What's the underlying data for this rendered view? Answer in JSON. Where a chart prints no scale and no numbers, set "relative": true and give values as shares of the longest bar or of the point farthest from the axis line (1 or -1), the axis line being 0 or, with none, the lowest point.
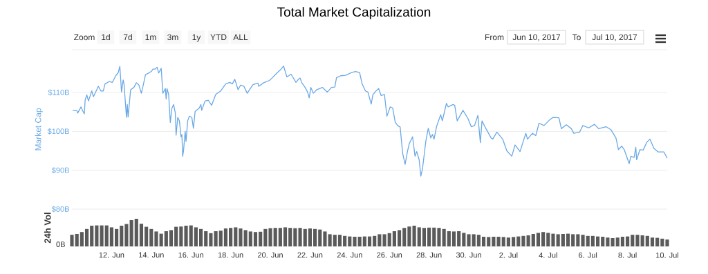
{
  "chart_data": [
    {
      "type": "line",
      "title": "Total Market Capitalization",
      "ylabel": "Market Cap",
      "xlim": [
        "2017-06-10",
        "2017-07-10"
      ],
      "ylim": [
        80,
        121
      ],
      "yticks": [
        {
          "value": 80,
          "label": "$80B"
        },
        {
          "value": 90,
          "label": "$90B"
        },
        {
          "value": 100,
          "label": "$100B"
        },
        {
          "value": 110,
          "label": "$110B"
        }
      ],
      "grid": "y",
      "tick_labels": "y",
      "annotations": [
        "Zoom",
        "1d",
        "7d",
        "1m",
        "3m",
        "1y",
        "YTD",
        "ALL",
        "From",
        "Jun 10, 2017",
        "To",
        "Jul 10, 2017"
      ],
      "series": [
        {
          "color": "#6aa9e6",
          "x": [
            "2017-06-10T01:00",
            "2017-06-10T06:00",
            "2017-06-10T07:00",
            "2017-06-10T11:00",
            "2017-06-10T13:00",
            "2017-06-10T15:00",
            "2017-06-10T16:00",
            "2017-06-10T18:00",
            "2017-06-10T20:00",
            "2017-06-11T00:00",
            "2017-06-11T02:00",
            "2017-06-11T08:00",
            "2017-06-11T11:00",
            "2017-06-11T14:00",
            "2017-06-11T16:00",
            "2017-06-11T21:00",
            "2017-06-12T01:00",
            "2017-06-12T05:00",
            "2017-06-12T08:00",
            "2017-06-12T10:00",
            "2017-06-12T12:00",
            "2017-06-12T14:00",
            "2017-06-12T15:00",
            "2017-06-12T18:00",
            "2017-06-12T19:00",
            "2017-06-12T20:00",
            "2017-06-12T23:00",
            "2017-06-13T03:00",
            "2017-06-13T06:00",
            "2017-06-13T09:00",
            "2017-06-13T12:00",
            "2017-06-13T14:00",
            "2017-06-13T17:00",
            "2017-06-13T20:00",
            "2017-06-14T00:00",
            "2017-06-14T02:00",
            "2017-06-14T05:00",
            "2017-06-14T07:00",
            "2017-06-14T09:00",
            "2017-06-14T12:00",
            "2017-06-14T14:00",
            "2017-06-14T17:00",
            "2017-06-14T18:00",
            "2017-06-14T19:00",
            "2017-06-14T21:00",
            "2017-06-14T23:00",
            "2017-06-15T01:00",
            "2017-06-15T03:00",
            "2017-06-15T05:00",
            "2017-06-15T06:00",
            "2017-06-15T08:00",
            "2017-06-15T10:00",
            "2017-06-15T12:00",
            "2017-06-15T13:00",
            "2017-06-15T14:00",
            "2017-06-15T15:00",
            "2017-06-15T17:00",
            "2017-06-15T18:00",
            "2017-06-15T20:00",
            "2017-06-15T22:00",
            "2017-06-16T01:00",
            "2017-06-16T03:00",
            "2017-06-16T05:00",
            "2017-06-16T10:00",
            "2017-06-16T12:00",
            "2017-06-16T13:00",
            "2017-06-16T17:00",
            "2017-06-16T21:00",
            "2017-06-17T01:00",
            "2017-06-17T06:00",
            "2017-06-17T12:00",
            "2017-06-17T18:00",
            "2017-06-17T23:00",
            "2017-06-18T02:00",
            "2017-06-18T05:00",
            "2017-06-18T09:00",
            "2017-06-18T12:00",
            "2017-06-18T16:00",
            "2017-06-18T20:00",
            "2017-06-19T03:00",
            "2017-06-19T09:00",
            "2017-06-19T10:00",
            "2017-06-19T16:00",
            "2017-06-19T23:00",
            "2017-06-20T02:00",
            "2017-06-20T08:00",
            "2017-06-20T13:00",
            "2017-06-20T16:00",
            "2017-06-20T20:00",
            "2017-06-21T01:00",
            "2017-06-21T07:00",
            "2017-06-21T10:00",
            "2017-06-21T12:00",
            "2017-06-21T14:00",
            "2017-06-21T18:00",
            "2017-06-21T21:00",
            "2017-06-21T23:00",
            "2017-06-22T01:00",
            "2017-06-22T04:00",
            "2017-06-22T08:00",
            "2017-06-22T15:00",
            "2017-06-22T21:00",
            "2017-06-23T02:00",
            "2017-06-23T06:00",
            "2017-06-23T08:00",
            "2017-06-23T13:00",
            "2017-06-23T19:00",
            "2017-06-24T02:00",
            "2017-06-24T07:00",
            "2017-06-24T12:00",
            "2017-06-24T15:00",
            "2017-06-24T19:00",
            "2017-06-24T22:00",
            "2017-06-25T02:00",
            "2017-06-25T04:00",
            "2017-06-25T07:00",
            "2017-06-25T11:00",
            "2017-06-25T14:00",
            "2017-06-25T18:00",
            "2017-06-25T21:00",
            "2017-06-26T01:00",
            "2017-06-26T04:00",
            "2017-06-26T07:00",
            "2017-06-26T10:00",
            "2017-06-26T13:00",
            "2017-06-26T16:00",
            "2017-06-26T19:00",
            "2017-06-26T22:00",
            "2017-06-27T00:00",
            "2017-06-27T04:00",
            "2017-06-27T07:00",
            "2017-06-27T09:00",
            "2017-06-27T12:00",
            "2017-06-27T14:00",
            "2017-06-27T16:00",
            "2017-06-27T20:00",
            "2017-06-27T23:00",
            "2017-06-28T02:00",
            "2017-06-28T04:00",
            "2017-06-28T06:00",
            "2017-06-28T09:00",
            "2017-06-28T14:00",
            "2017-06-28T16:00",
            "2017-06-28T21:00",
            "2017-06-28T23:00",
            "2017-06-29T05:00",
            "2017-06-29T07:00",
            "2017-06-29T10:00",
            "2017-06-29T17:00",
            "2017-06-29T23:00",
            "2017-06-30T03:00",
            "2017-06-30T07:00",
            "2017-06-30T11:00",
            "2017-06-30T14:00",
            "2017-06-30T16:00",
            "2017-06-30T21:00",
            "2017-07-01T03:00",
            "2017-07-01T05:00",
            "2017-07-01T10:00",
            "2017-07-01T17:00",
            "2017-07-01T22:00",
            "2017-07-02T04:00",
            "2017-07-02T08:00",
            "2017-07-02T14:00",
            "2017-07-02T21:00",
            "2017-07-02T23:00",
            "2017-07-03T05:00",
            "2017-07-03T09:00",
            "2017-07-03T13:00",
            "2017-07-03T19:00",
            "2017-07-04T02:00",
            "2017-07-04T06:00",
            "2017-07-04T13:00",
            "2017-07-04T16:00",
            "2017-07-04T22:00",
            "2017-07-05T04:00",
            "2017-07-05T07:00",
            "2017-07-05T14:00",
            "2017-07-05T18:00",
            "2017-07-06T01:00",
            "2017-07-06T08:00",
            "2017-07-06T13:00",
            "2017-07-06T22:00",
            "2017-07-07T04:00",
            "2017-07-07T10:00",
            "2017-07-07T13:00",
            "2017-07-07T17:00",
            "2017-07-07T20:00",
            "2017-07-08T02:00",
            "2017-07-08T04:00",
            "2017-07-08T08:00",
            "2017-07-08T10:00",
            "2017-07-08T11:00",
            "2017-07-08T15:00",
            "2017-07-08T19:00",
            "2017-07-08T23:00",
            "2017-07-09T03:00",
            "2017-07-09T08:00",
            "2017-07-09T13:00",
            "2017-07-09T20:00",
            "2017-07-10T00:00"
          ],
          "values": [
            105.4,
            105.3,
            104.7,
            106.3,
            105.3,
            104.5,
            108,
            109.4,
            107.8,
            110.4,
            108.9,
            111.6,
            110.4,
            110.4,
            112.2,
            112.8,
            112.6,
            114.3,
            115.1,
            116.7,
            110.1,
            113.2,
            112.2,
            103.6,
            106.9,
            103.7,
            110.7,
            111.3,
            112.5,
            111.9,
            109.8,
            111.6,
            114.6,
            114.9,
            115.4,
            116,
            116,
            116.5,
            115,
            116.2,
            109.8,
            111,
            108.3,
            111,
            109.5,
            102.3,
            106,
            106.9,
            104.8,
            99,
            103.6,
            102.7,
            98.6,
            99.2,
            93.6,
            95,
            100,
            97.4,
            102.7,
            103.9,
            103.6,
            100.8,
            105.1,
            106,
            106.9,
            105.4,
            107.8,
            108,
            106.7,
            109.5,
            110.4,
            112.2,
            112.6,
            112.2,
            113.4,
            110.7,
            111.9,
            111.6,
            109.8,
            112,
            112.4,
            111.6,
            112.5,
            113.1,
            113.7,
            115,
            116,
            116.8,
            114,
            114.7,
            112.6,
            113.4,
            113.7,
            112.5,
            111.3,
            110.1,
            108.6,
            111.3,
            109.8,
            110.7,
            111.3,
            110.1,
            111.3,
            111.4,
            113.8,
            114.3,
            114.4,
            115.1,
            115.4,
            115.1,
            112.2,
            110.4,
            110.1,
            107,
            109.4,
            110.2,
            111,
            109.2,
            109.5,
            103.9,
            106.3,
            106,
            102.4,
            101.5,
            101.1,
            94.4,
            91.5,
            95,
            96.8,
            98.6,
            93.6,
            94.8,
            92.7,
            88.5,
            90.3,
            97.4,
            100.8,
            98.3,
            99.2,
            98,
            101.2,
            104.3,
            102.7,
            107.2,
            106.3,
            106.9,
            106.7,
            102.7,
            105.4,
            103.3,
            101.2,
            101.5,
            104.1,
            97.1,
            102.7,
            100.6,
            98.3,
            98,
            99.8,
            98,
            95,
            93.6,
            96.5,
            94.8,
            99.5,
            98,
            99.5,
            98.9,
            102.1,
            101.5,
            103,
            103.6,
            103.5,
            100.7,
            101.7,
            100.7,
            99.5,
            99.8,
            101.5,
            100.9,
            101.8,
            100.7,
            101.2,
            100.4,
            98.3,
            95.3,
            96.2,
            95.3,
            91.7,
            93.6,
            93.3,
            95.9,
            92.7,
            95.3,
            95.2,
            97.1,
            98,
            95.6,
            94.7,
            94.7,
            93.1
          ]
        }
      ]
    },
    {
      "type": "bar",
      "ylabel": "24h Vol",
      "relative": true,
      "tick_labels": "x",
      "xlim": [
        "2017-06-10",
        "2017-07-10"
      ],
      "xticks": [
        {
          "value": "2017-06-12",
          "label": "12. Jun"
        },
        {
          "value": "2017-06-14",
          "label": "14. Jun"
        },
        {
          "value": "2017-06-16",
          "label": "16. Jun"
        },
        {
          "value": "2017-06-18",
          "label": "18. Jun"
        },
        {
          "value": "2017-06-20",
          "label": "20. Jun"
        },
        {
          "value": "2017-06-22",
          "label": "22. Jun"
        },
        {
          "value": "2017-06-24",
          "label": "24. Jun"
        },
        {
          "value": "2017-06-26",
          "label": "26. Jun"
        },
        {
          "value": "2017-06-28",
          "label": "28. Jun"
        },
        {
          "value": "2017-06-30",
          "label": "30. Jun"
        },
        {
          "value": "2017-07-02",
          "label": "2. Jul"
        },
        {
          "value": "2017-07-04",
          "label": "4. Jul"
        },
        {
          "value": "2017-07-06",
          "label": "6. Jul"
        },
        {
          "value": "2017-07-08",
          "label": "8. Jul"
        },
        {
          "value": "2017-07-10",
          "label": "10. Jul"
        }
      ],
      "annotations": [
        "0B"
      ],
      "series": [
        {
          "color": "#5a5a5a",
          "x": [
            "2017-06-10T00:00",
            "2017-06-10T06:00",
            "2017-06-10T12:00",
            "2017-06-10T18:00",
            "2017-06-11T00:00",
            "2017-06-11T06:00",
            "2017-06-11T12:00",
            "2017-06-11T18:00",
            "2017-06-12T00:00",
            "2017-06-12T06:00",
            "2017-06-12T12:00",
            "2017-06-12T18:00",
            "2017-06-13T00:00",
            "2017-06-13T06:00",
            "2017-06-13T12:00",
            "2017-06-13T18:00",
            "2017-06-14T00:00",
            "2017-06-14T06:00",
            "2017-06-14T12:00",
            "2017-06-14T18:00",
            "2017-06-15T00:00",
            "2017-06-15T06:00",
            "2017-06-15T12:00",
            "2017-06-15T18:00",
            "2017-06-16T00:00",
            "2017-06-16T06:00",
            "2017-06-16T12:00",
            "2017-06-16T18:00",
            "2017-06-17T00:00",
            "2017-06-17T06:00",
            "2017-06-17T12:00",
            "2017-06-17T18:00",
            "2017-06-18T00:00",
            "2017-06-18T06:00",
            "2017-06-18T12:00",
            "2017-06-18T18:00",
            "2017-06-19T00:00",
            "2017-06-19T06:00",
            "2017-06-19T12:00",
            "2017-06-19T18:00",
            "2017-06-20T00:00",
            "2017-06-20T06:00",
            "2017-06-20T12:00",
            "2017-06-20T18:00",
            "2017-06-21T00:00",
            "2017-06-21T06:00",
            "2017-06-21T12:00",
            "2017-06-21T18:00",
            "2017-06-22T00:00",
            "2017-06-22T06:00",
            "2017-06-22T12:00",
            "2017-06-22T18:00",
            "2017-06-23T00:00",
            "2017-06-23T06:00",
            "2017-06-23T12:00",
            "2017-06-23T18:00",
            "2017-06-24T00:00",
            "2017-06-24T06:00",
            "2017-06-24T12:00",
            "2017-06-24T18:00",
            "2017-06-25T00:00",
            "2017-06-25T06:00",
            "2017-06-25T12:00",
            "2017-06-25T18:00",
            "2017-06-26T00:00",
            "2017-06-26T06:00",
            "2017-06-26T12:00",
            "2017-06-26T18:00",
            "2017-06-27T00:00",
            "2017-06-27T06:00",
            "2017-06-27T12:00",
            "2017-06-27T18:00",
            "2017-06-28T00:00",
            "2017-06-28T06:00",
            "2017-06-28T12:00",
            "2017-06-28T18:00",
            "2017-06-29T00:00",
            "2017-06-29T06:00",
            "2017-06-29T12:00",
            "2017-06-29T18:00",
            "2017-06-30T00:00",
            "2017-06-30T06:00",
            "2017-06-30T12:00",
            "2017-06-30T18:00",
            "2017-07-01T00:00",
            "2017-07-01T06:00",
            "2017-07-01T12:00",
            "2017-07-01T18:00",
            "2017-07-02T00:00",
            "2017-07-02T06:00",
            "2017-07-02T12:00",
            "2017-07-02T18:00",
            "2017-07-03T00:00",
            "2017-07-03T06:00",
            "2017-07-03T12:00",
            "2017-07-03T18:00",
            "2017-07-04T00:00",
            "2017-07-04T06:00",
            "2017-07-04T12:00",
            "2017-07-04T18:00",
            "2017-07-05T00:00",
            "2017-07-05T06:00",
            "2017-07-05T12:00",
            "2017-07-05T18:00",
            "2017-07-06T00:00",
            "2017-07-06T06:00",
            "2017-07-06T12:00",
            "2017-07-06T18:00",
            "2017-07-07T00:00",
            "2017-07-07T06:00",
            "2017-07-07T12:00",
            "2017-07-07T18:00",
            "2017-07-08T00:00",
            "2017-07-08T06:00",
            "2017-07-08T12:00",
            "2017-07-08T18:00",
            "2017-07-09T00:00",
            "2017-07-09T06:00",
            "2017-07-09T12:00",
            "2017-07-09T18:00",
            "2017-07-10T00:00"
          ],
          "values": [
            0.42,
            0.45,
            0.52,
            0.63,
            0.75,
            0.76,
            0.76,
            0.76,
            0.69,
            0.63,
            0.75,
            0.81,
            0.95,
            1.0,
            0.82,
            0.71,
            0.63,
            0.54,
            0.46,
            0.55,
            0.59,
            0.71,
            0.72,
            0.75,
            0.76,
            0.69,
            0.63,
            0.55,
            0.48,
            0.55,
            0.57,
            0.65,
            0.67,
            0.69,
            0.65,
            0.59,
            0.54,
            0.52,
            0.53,
            0.63,
            0.66,
            0.67,
            0.67,
            0.69,
            0.67,
            0.66,
            0.67,
            0.63,
            0.65,
            0.63,
            0.61,
            0.54,
            0.44,
            0.42,
            0.42,
            0.38,
            0.36,
            0.35,
            0.35,
            0.36,
            0.36,
            0.38,
            0.44,
            0.44,
            0.48,
            0.55,
            0.59,
            0.67,
            0.72,
            0.75,
            0.69,
            0.67,
            0.68,
            0.68,
            0.67,
            0.63,
            0.55,
            0.54,
            0.55,
            0.49,
            0.44,
            0.44,
            0.42,
            0.35,
            0.34,
            0.35,
            0.35,
            0.34,
            0.32,
            0.34,
            0.36,
            0.38,
            0.4,
            0.45,
            0.49,
            0.52,
            0.49,
            0.46,
            0.44,
            0.45,
            0.46,
            0.44,
            0.44,
            0.42,
            0.38,
            0.38,
            0.36,
            0.35,
            0.32,
            0.3,
            0.32,
            0.35,
            0.36,
            0.42,
            0.42,
            0.4,
            0.38,
            0.32,
            0.31,
            0.28,
            0.25
          ]
        }
      ]
    }
  ]
}
